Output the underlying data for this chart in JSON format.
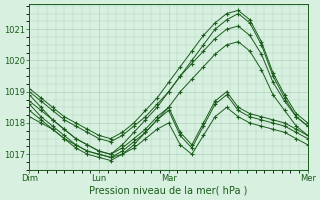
{
  "title": "",
  "xlabel": "Pression niveau de la mer( hPa )",
  "ylabel": "",
  "bg_color": "#d8f0e0",
  "plot_bg_color": "#d8f0e0",
  "grid_color": "#b0cfc0",
  "line_color": "#1a5c1a",
  "marker_color": "#1a5c1a",
  "ylim": [
    1016.5,
    1021.8
  ],
  "xlim": [
    0,
    96
  ],
  "yticks": [
    1017,
    1018,
    1019,
    1020,
    1021
  ],
  "series": [
    {
      "x": [
        0,
        4,
        8,
        12,
        16,
        20,
        24,
        28,
        32,
        36,
        40,
        44,
        48,
        52,
        56,
        60,
        64,
        68,
        72,
        76,
        80,
        84,
        88,
        92,
        96
      ],
      "y": [
        1019.0,
        1018.7,
        1018.4,
        1018.1,
        1017.9,
        1017.7,
        1017.5,
        1017.4,
        1017.6,
        1017.9,
        1018.2,
        1018.6,
        1019.0,
        1019.5,
        1020.0,
        1020.5,
        1021.0,
        1021.3,
        1021.5,
        1021.2,
        1020.5,
        1019.5,
        1018.8,
        1018.2,
        1017.9
      ]
    },
    {
      "x": [
        0,
        4,
        8,
        12,
        16,
        20,
        24,
        28,
        32,
        36,
        40,
        44,
        48,
        52,
        56,
        60,
        64,
        68,
        72,
        76,
        80,
        84,
        88,
        92,
        96
      ],
      "y": [
        1019.1,
        1018.8,
        1018.5,
        1018.2,
        1018.0,
        1017.8,
        1017.6,
        1017.5,
        1017.7,
        1018.0,
        1018.4,
        1018.8,
        1019.3,
        1019.8,
        1020.3,
        1020.8,
        1021.2,
        1021.5,
        1021.6,
        1021.3,
        1020.6,
        1019.6,
        1018.9,
        1018.3,
        1018.0
      ]
    },
    {
      "x": [
        0,
        4,
        8,
        12,
        16,
        20,
        24,
        28,
        32,
        36,
        40,
        44,
        48,
        52,
        56,
        60,
        64,
        68,
        72,
        76,
        80,
        84,
        88,
        92,
        96
      ],
      "y": [
        1018.9,
        1018.5,
        1018.1,
        1017.8,
        1017.5,
        1017.3,
        1017.1,
        1017.0,
        1017.2,
        1017.5,
        1017.8,
        1018.2,
        1018.5,
        1017.7,
        1017.3,
        1018.0,
        1018.7,
        1019.0,
        1018.5,
        1018.3,
        1018.2,
        1018.1,
        1018.0,
        1017.8,
        1017.6
      ]
    },
    {
      "x": [
        0,
        4,
        8,
        12,
        16,
        20,
        24,
        28,
        32,
        36,
        40,
        44,
        48,
        52,
        56,
        60,
        64,
        68,
        72,
        76,
        80,
        84,
        88,
        92,
        96
      ],
      "y": [
        1018.6,
        1018.2,
        1017.9,
        1017.6,
        1017.3,
        1017.1,
        1017.0,
        1016.9,
        1017.1,
        1017.4,
        1017.7,
        1018.1,
        1018.4,
        1017.6,
        1017.2,
        1017.9,
        1018.6,
        1018.9,
        1018.4,
        1018.2,
        1018.1,
        1018.0,
        1017.9,
        1017.7,
        1017.5
      ]
    },
    {
      "x": [
        0,
        4,
        8,
        12,
        16,
        20,
        24,
        28,
        32,
        36,
        40,
        44,
        48,
        52,
        56,
        60,
        64,
        68,
        72,
        76,
        80,
        84,
        88,
        92,
        96
      ],
      "y": [
        1018.2,
        1018.0,
        1017.8,
        1017.5,
        1017.3,
        1017.1,
        1017.0,
        1016.9,
        1017.0,
        1017.2,
        1017.5,
        1017.8,
        1018.0,
        1017.3,
        1017.0,
        1017.6,
        1018.2,
        1018.5,
        1018.2,
        1018.0,
        1017.9,
        1017.8,
        1017.7,
        1017.5,
        1017.3
      ]
    },
    {
      "x": [
        0,
        4,
        8,
        12,
        16,
        20,
        24,
        28,
        32,
        36,
        40,
        44,
        48,
        52,
        56,
        60,
        64,
        68,
        72,
        76,
        80,
        84,
        88,
        92,
        96
      ],
      "y": [
        1018.7,
        1018.4,
        1018.1,
        1017.8,
        1017.5,
        1017.3,
        1017.1,
        1017.0,
        1017.3,
        1017.7,
        1018.1,
        1018.5,
        1019.0,
        1019.5,
        1019.9,
        1020.3,
        1020.7,
        1021.0,
        1021.1,
        1020.8,
        1020.2,
        1019.3,
        1018.7,
        1018.2,
        1017.9
      ]
    },
    {
      "x": [
        0,
        4,
        8,
        12,
        16,
        20,
        24,
        28,
        32,
        36,
        40,
        44,
        48,
        52,
        56,
        60,
        64,
        68,
        72,
        76,
        80,
        84,
        88,
        92,
        96
      ],
      "y": [
        1018.4,
        1018.1,
        1017.8,
        1017.5,
        1017.2,
        1017.0,
        1016.9,
        1016.8,
        1017.0,
        1017.3,
        1017.7,
        1018.1,
        1018.5,
        1019.0,
        1019.4,
        1019.8,
        1020.2,
        1020.5,
        1020.6,
        1020.3,
        1019.7,
        1018.9,
        1018.4,
        1017.9,
        1017.6
      ]
    }
  ]
}
